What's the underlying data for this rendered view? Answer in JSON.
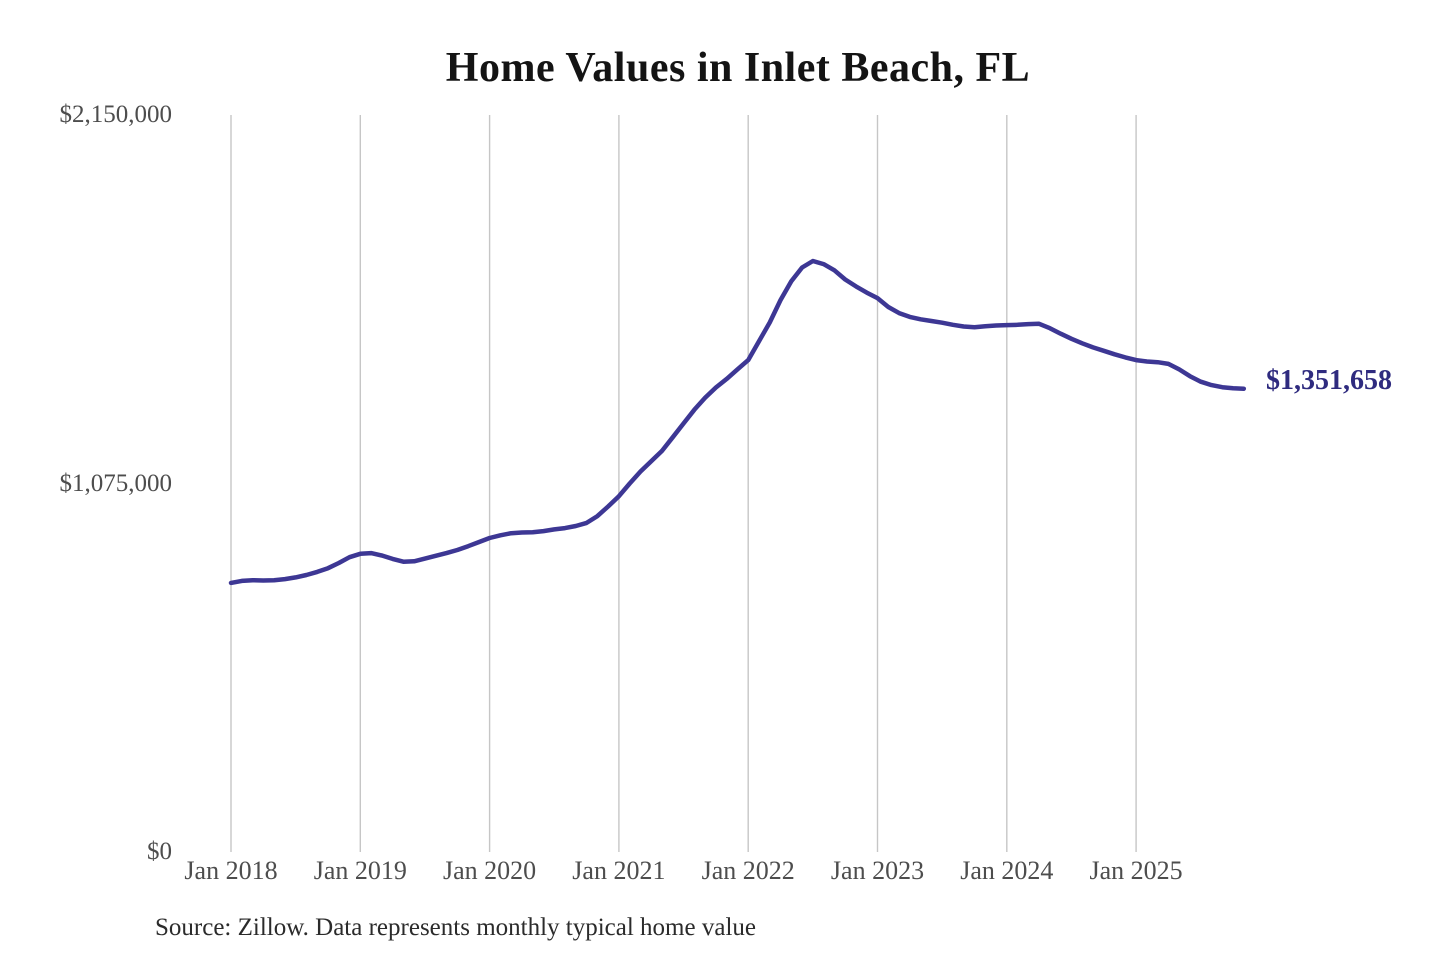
{
  "chart": {
    "title": "Home Values in Inlet Beach, FL",
    "source_note": "Source: Zillow. Data represents monthly typical home value",
    "end_label": "$1,351,658"
  },
  "colors": {
    "line": "#3d3794",
    "annotation": "#2f2b7f",
    "grid": "#c6c6c6",
    "axis_text": "#4d4d4d",
    "title_text": "#141414",
    "source_text": "#2b2b2b",
    "background": "#ffffff"
  },
  "chart_data": {
    "type": "line",
    "title": "Home Values in Inlet Beach, FL",
    "series_name": "Monthly typical home value",
    "xlabel": "",
    "ylabel": "",
    "ylim": [
      0,
      2150000
    ],
    "grid": "vertical-only",
    "legend": "none",
    "yticks": [
      {
        "value": 2150000,
        "label": "$2,150,000"
      },
      {
        "value": 1075000,
        "label": "$1,075,000"
      },
      {
        "value": 0,
        "label": "$0"
      }
    ],
    "xticks": [
      "Jan 2018",
      "Jan 2019",
      "Jan 2020",
      "Jan 2021",
      "Jan 2022",
      "Jan 2023",
      "Jan 2024",
      "Jan 2025"
    ],
    "last_value": 1351658,
    "last_value_label": "$1,351,658",
    "x": [
      "2018-01",
      "2018-02",
      "2018-03",
      "2018-04",
      "2018-05",
      "2018-06",
      "2018-07",
      "2018-08",
      "2018-09",
      "2018-10",
      "2018-11",
      "2018-12",
      "2019-01",
      "2019-02",
      "2019-03",
      "2019-04",
      "2019-05",
      "2019-06",
      "2019-07",
      "2019-08",
      "2019-09",
      "2019-10",
      "2019-11",
      "2019-12",
      "2020-01",
      "2020-02",
      "2020-03",
      "2020-04",
      "2020-05",
      "2020-06",
      "2020-07",
      "2020-08",
      "2020-09",
      "2020-10",
      "2020-11",
      "2020-12",
      "2021-01",
      "2021-02",
      "2021-03",
      "2021-04",
      "2021-05",
      "2021-06",
      "2021-07",
      "2021-08",
      "2021-09",
      "2021-10",
      "2021-11",
      "2021-12",
      "2022-01",
      "2022-02",
      "2022-03",
      "2022-04",
      "2022-05",
      "2022-06",
      "2022-07",
      "2022-08",
      "2022-09",
      "2022-10",
      "2022-11",
      "2022-12",
      "2023-01",
      "2023-02",
      "2023-03",
      "2023-04",
      "2023-05",
      "2023-06",
      "2023-07",
      "2023-08",
      "2023-09",
      "2023-10",
      "2023-11",
      "2023-12",
      "2024-01",
      "2024-02",
      "2024-03",
      "2024-04",
      "2024-05",
      "2024-06",
      "2024-07",
      "2024-08",
      "2024-09",
      "2024-10",
      "2024-11",
      "2024-12",
      "2025-01",
      "2025-02",
      "2025-03",
      "2025-04",
      "2025-05",
      "2025-06",
      "2025-07",
      "2025-08",
      "2025-09",
      "2025-10",
      "2025-11"
    ],
    "values": [
      785000,
      791000,
      793000,
      792000,
      793000,
      796000,
      801000,
      808000,
      817000,
      828000,
      843000,
      860000,
      870000,
      872000,
      865000,
      855000,
      847000,
      848000,
      856000,
      864000,
      872000,
      881000,
      892000,
      904000,
      916000,
      924000,
      930000,
      932000,
      933000,
      936000,
      941000,
      945000,
      951000,
      960000,
      980000,
      1008000,
      1038000,
      1075000,
      1110000,
      1140000,
      1170000,
      1210000,
      1250000,
      1290000,
      1325000,
      1355000,
      1380000,
      1408000,
      1435000,
      1490000,
      1545000,
      1610000,
      1665000,
      1705000,
      1724000,
      1715000,
      1697000,
      1670000,
      1650000,
      1632000,
      1616000,
      1590000,
      1572000,
      1561000,
      1554000,
      1549000,
      1544000,
      1538000,
      1533000,
      1531000,
      1534000,
      1536000,
      1537000,
      1538000,
      1540000,
      1541000,
      1528000,
      1512000,
      1497000,
      1484000,
      1472000,
      1462000,
      1452000,
      1443000,
      1435000,
      1431000,
      1429000,
      1424000,
      1408000,
      1388000,
      1372000,
      1362000,
      1356000,
      1353000,
      1351658
    ]
  }
}
